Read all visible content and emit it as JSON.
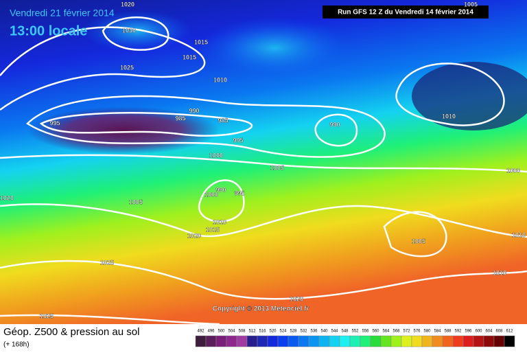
{
  "header": {
    "date": "Vendredi 21 février 2014",
    "time": "13:00 locale",
    "run": "Run GFS 12 Z du Vendredi 14 février 2014"
  },
  "map": {
    "isobar_labels": [
      "1020",
      "1030",
      "1015",
      "1015",
      "1025",
      "1010",
      "995",
      "990",
      "985",
      "985",
      "995",
      "1000",
      "990",
      "1005",
      "1010",
      "1005",
      "1000",
      "1020",
      "1005",
      "990",
      "1000",
      "995",
      "1010",
      "1015",
      "1020",
      "1025",
      "1005",
      "1010",
      "1010",
      "1020",
      "1025"
    ],
    "copyright": "Copyright © 2013 Meteociel.fr"
  },
  "footer": {
    "title": "Géop. Z500 & pression au sol",
    "lead": "(+ 168h)"
  },
  "legend": {
    "ticks": [
      492,
      496,
      500,
      504,
      508,
      512,
      516,
      520,
      524,
      528,
      532,
      536,
      540,
      544,
      548,
      552,
      556,
      560,
      564,
      568,
      572,
      576,
      580,
      584,
      588,
      592,
      596,
      600,
      604,
      608,
      612
    ],
    "colors": [
      "#3c1e3c",
      "#5a1e5a",
      "#7a1e7a",
      "#8c288c",
      "#a03ca0",
      "#281e8c",
      "#1e28b4",
      "#1428dc",
      "#0a3cf0",
      "#0a5af0",
      "#0a78f0",
      "#0a96f0",
      "#0ab4f0",
      "#14d2f0",
      "#1ef0f0",
      "#1ef0b4",
      "#1ef078",
      "#28dc3c",
      "#64e61e",
      "#a0f01e",
      "#dcf01e",
      "#f0dc1e",
      "#f0b41e",
      "#f08c1e",
      "#f0641e",
      "#f03c1e",
      "#dc1e1e",
      "#b41414",
      "#8c0a0a",
      "#640000",
      "#000000"
    ]
  }
}
